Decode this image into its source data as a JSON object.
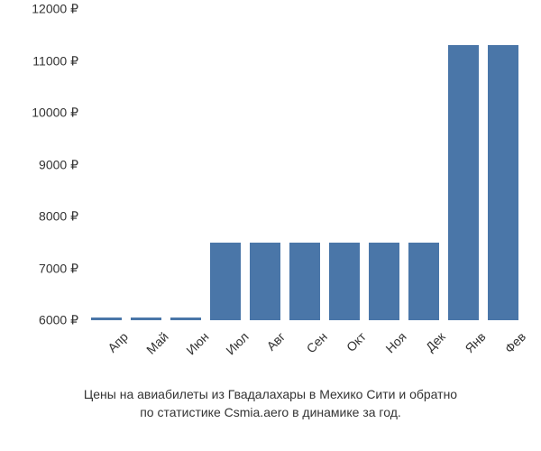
{
  "chart": {
    "type": "bar",
    "categories": [
      "Апр",
      "Май",
      "Июн",
      "Июл",
      "Авг",
      "Сен",
      "Окт",
      "Ноя",
      "Дек",
      "Янв",
      "Фев"
    ],
    "values": [
      6050,
      6050,
      6050,
      7500,
      7500,
      7500,
      7500,
      7500,
      7500,
      11300,
      11300
    ],
    "bar_color": "#4a76a8",
    "ylim_min": 6000,
    "ylim_max": 12000,
    "ytick_step": 1000,
    "yticks": [
      6000,
      7000,
      8000,
      9000,
      10000,
      11000,
      12000
    ],
    "y_suffix": " ₽",
    "tick_fontsize": 14,
    "tick_color": "#333333",
    "xlabel_rotation_deg": -45,
    "background_color": "#ffffff",
    "bar_width_ratio": 0.78
  },
  "caption": {
    "line1": "Цены на авиабилеты из Гвадалахары в Мехико Сити и обратно",
    "line2": "по статистике Csmia.aero в динамике за год.",
    "fontsize": 14,
    "color": "#333333"
  }
}
